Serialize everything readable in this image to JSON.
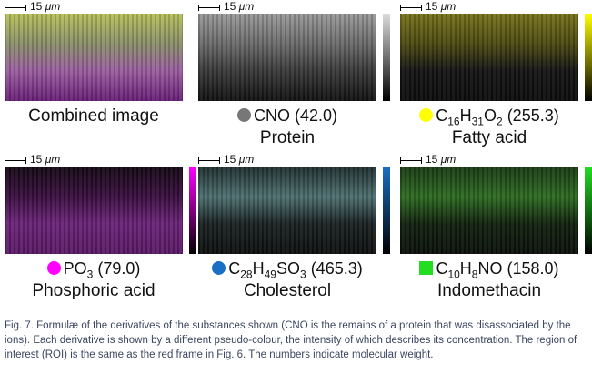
{
  "panels": [
    {
      "name": "Combined image",
      "scale": {
        "number": "15",
        "unit": "μm"
      },
      "colorbar": false,
      "image": [
        "#b7c05a",
        "#8a8f6a",
        "#9a5ea0",
        "#6a1f78"
      ]
    },
    {
      "name": "Protein",
      "formula": [
        {
          "text": "CNO"
        }
      ],
      "mass": "(42.0)",
      "marker": "circle",
      "color": "#777777",
      "scale": {
        "number": "15",
        "unit": "μm"
      },
      "colorbar": true,
      "image": [
        "#9a9a9a",
        "#6a6a6a",
        "#3a3a3a",
        "#111111"
      ]
    },
    {
      "name": "Fatty acid",
      "formula": [
        {
          "text": "C"
        },
        {
          "sub": "16"
        },
        {
          "text": "H"
        },
        {
          "sub": "31"
        },
        {
          "text": "O"
        },
        {
          "sub": "2"
        }
      ],
      "mass": "(255.3)",
      "marker": "circle",
      "color": "#ffff00",
      "scale": {
        "number": "15",
        "unit": "μm"
      },
      "colorbar": true,
      "image": [
        "#77731a",
        "#4c4912",
        "#141414",
        "#0c0c0c"
      ]
    },
    {
      "name": "Phosphoric acid",
      "formula": [
        {
          "text": "PO"
        },
        {
          "sub": "3"
        }
      ],
      "mass": "(79.0)",
      "marker": "circle",
      "color": "#ff00ff",
      "scale": {
        "number": "15",
        "unit": "μm"
      },
      "colorbar": true,
      "image": [
        "#140814",
        "#3a0f40",
        "#6a2378",
        "#5a1a66"
      ]
    },
    {
      "name": "Cholesterol",
      "formula": [
        {
          "text": "C"
        },
        {
          "sub": "28"
        },
        {
          "text": "H"
        },
        {
          "sub": "49"
        },
        {
          "text": "SO"
        },
        {
          "sub": "3"
        }
      ],
      "mass": "(465.3)",
      "marker": "circle",
      "color": "#1a6fc4",
      "scale": {
        "number": "15",
        "unit": "μm"
      },
      "colorbar": true,
      "image": [
        "#1f2e2e",
        "#4d6f70",
        "#1a2222",
        "#0e0e0e"
      ]
    },
    {
      "name": "Indomethacin",
      "formula": [
        {
          "text": "C"
        },
        {
          "sub": "10"
        },
        {
          "text": "H"
        },
        {
          "sub": "8"
        },
        {
          "text": "NO"
        }
      ],
      "mass": "(158.0)",
      "marker": "square",
      "color": "#22dd22",
      "scale": {
        "number": "15",
        "unit": "μm"
      },
      "colorbar": true,
      "image": [
        "#1a3a14",
        "#2d6a22",
        "#11220e",
        "#0a0f0a"
      ]
    }
  ],
  "caption": "Fig.  7. Formulæ of the derivatives of the substances shown (CNO is the remains of a protein that was disassociated by the ions). Each derivative is shown by a different pseudo-colour, the intensity of which describes its concentration. The region of interest (ROI) is the same as the red frame in Fig.  6. The numbers indicate molecular weight."
}
